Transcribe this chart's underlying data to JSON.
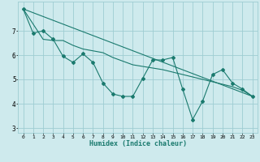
{
  "title": "",
  "xlabel": "Humidex (Indice chaleur)",
  "ylabel": "",
  "background_color": "#ceeaed",
  "grid_color": "#9ecdd2",
  "line_color": "#1a7a6e",
  "xlim": [
    -0.5,
    23.5
  ],
  "ylim": [
    2.8,
    8.2
  ],
  "yticks": [
    3,
    4,
    5,
    6,
    7
  ],
  "xticks": [
    0,
    1,
    2,
    3,
    4,
    5,
    6,
    7,
    8,
    9,
    10,
    11,
    12,
    13,
    14,
    15,
    16,
    17,
    18,
    19,
    20,
    21,
    22,
    23
  ],
  "series1_x": [
    0,
    1,
    2,
    3,
    4,
    5,
    6,
    7,
    8,
    9,
    10,
    11,
    12,
    13,
    14,
    15,
    16,
    17,
    18,
    19,
    20,
    21,
    22,
    23
  ],
  "series1_y": [
    7.9,
    6.9,
    7.0,
    6.65,
    5.95,
    5.7,
    6.05,
    5.7,
    4.85,
    4.4,
    4.3,
    4.3,
    5.05,
    5.8,
    5.8,
    5.9,
    4.6,
    3.35,
    4.1,
    5.2,
    5.4,
    4.85,
    4.6,
    4.3
  ],
  "series2_x": [
    0,
    2,
    3,
    4,
    5,
    6,
    8,
    9,
    10,
    11,
    14,
    15,
    17,
    18,
    19,
    21,
    22,
    23
  ],
  "series2_y": [
    7.9,
    6.65,
    6.6,
    6.6,
    6.4,
    6.25,
    6.1,
    5.9,
    5.75,
    5.6,
    5.4,
    5.3,
    5.1,
    5.0,
    4.9,
    4.7,
    4.55,
    4.3
  ],
  "series3_x": [
    0,
    23
  ],
  "series3_y": [
    7.9,
    4.3
  ]
}
